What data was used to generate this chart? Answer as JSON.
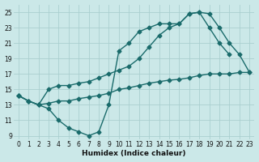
{
  "xlabel": "Humidex (Indice chaleur)",
  "background_color": "#cbe8e8",
  "grid_color": "#aacfcf",
  "line_color": "#1a6b6b",
  "xlim": [
    -0.5,
    23.5
  ],
  "ylim": [
    8.5,
    26
  ],
  "xticks": [
    0,
    1,
    2,
    3,
    4,
    5,
    6,
    7,
    8,
    9,
    10,
    11,
    12,
    13,
    14,
    15,
    16,
    17,
    18,
    19,
    20,
    21,
    22,
    23
  ],
  "yticks": [
    9,
    11,
    13,
    15,
    17,
    19,
    21,
    23,
    25
  ],
  "line1_x": [
    0,
    1,
    2,
    3,
    4,
    5,
    6,
    7,
    8,
    9,
    10,
    11,
    12,
    13,
    14,
    15,
    16,
    17,
    18,
    19,
    20,
    21
  ],
  "line1_y": [
    14.2,
    13.5,
    13.0,
    12.5,
    11.0,
    10.0,
    9.5,
    9.0,
    9.5,
    13.0,
    20.0,
    21.0,
    22.5,
    23.0,
    23.5,
    23.5,
    23.5,
    24.8,
    25.0,
    23.0,
    21.0,
    19.5
  ],
  "line2_x": [
    0,
    1,
    2,
    3,
    4,
    5,
    6,
    7,
    8,
    9,
    10,
    11,
    12,
    13,
    14,
    15,
    16,
    17,
    18,
    19,
    20,
    21,
    22,
    23
  ],
  "line2_y": [
    14.2,
    13.5,
    13.0,
    15.0,
    15.5,
    15.5,
    15.8,
    16.0,
    16.5,
    17.0,
    17.5,
    18.0,
    19.0,
    20.5,
    22.0,
    23.0,
    23.5,
    24.8,
    25.0,
    24.8,
    23.0,
    21.0,
    19.5,
    17.2
  ],
  "line3_x": [
    0,
    1,
    2,
    3,
    4,
    5,
    6,
    7,
    8,
    9,
    10,
    11,
    12,
    13,
    14,
    15,
    16,
    17,
    18,
    19,
    20,
    21,
    22,
    23
  ],
  "line3_y": [
    14.2,
    13.5,
    13.0,
    13.2,
    13.5,
    13.5,
    13.8,
    14.0,
    14.2,
    14.5,
    15.0,
    15.2,
    15.5,
    15.8,
    16.0,
    16.2,
    16.3,
    16.5,
    16.8,
    17.0,
    17.0,
    17.0,
    17.2,
    17.2
  ],
  "markersize": 2.5,
  "linewidth": 1.0
}
